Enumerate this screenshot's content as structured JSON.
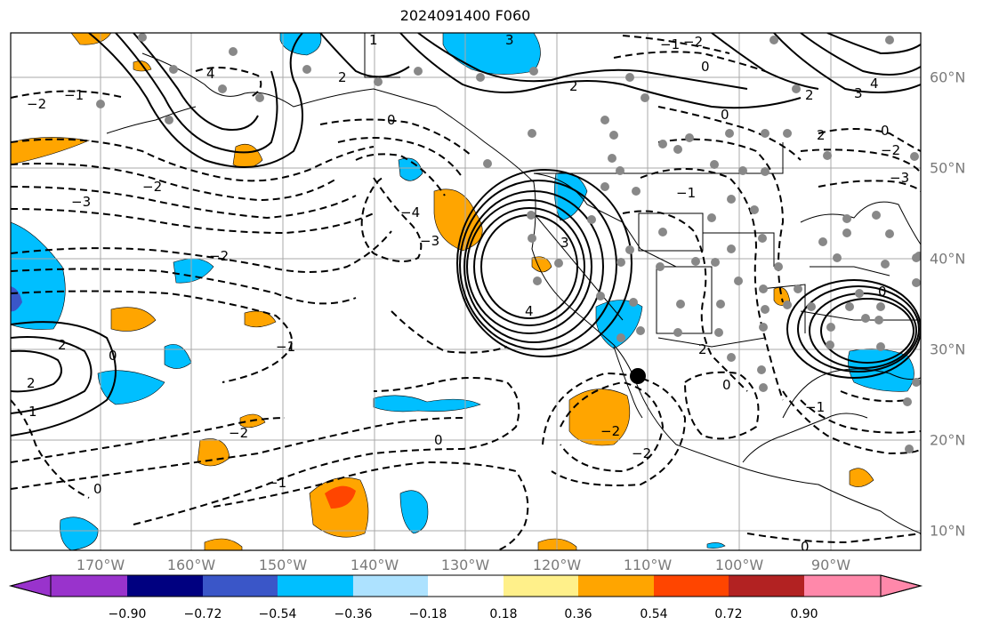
{
  "title": "2024091400 F060",
  "lon_labels": [
    "170°W",
    "160°W",
    "150°W",
    "140°W",
    "130°W",
    "120°W",
    "110°W",
    "100°W",
    "90°W"
  ],
  "lat_labels": [
    "60°N",
    "50°N",
    "40°N",
    "30°N",
    "20°N",
    "10°N"
  ],
  "colorbar": {
    "ticks": [
      "−0.90",
      "−0.72",
      "−0.54",
      "−0.36",
      "−0.18",
      "0.18",
      "0.36",
      "0.54",
      "0.72",
      "0.90"
    ],
    "colors": [
      "#9933cc",
      "#000080",
      "#3a56c8",
      "#00bfff",
      "#ade2ff",
      "#ffffff",
      "#fff08a",
      "#ffa500",
      "#ff4500",
      "#b22222",
      "#ff88aa"
    ]
  },
  "contour_labels": [
    "0",
    "1",
    "2",
    "3",
    "4",
    "−1",
    "−2",
    "−3",
    "−4"
  ],
  "colors": {
    "positive": "#ffa500",
    "strong_positive": "#ff4500",
    "negative": "#00bfff",
    "stations": "#888888",
    "marker": "#000000"
  }
}
